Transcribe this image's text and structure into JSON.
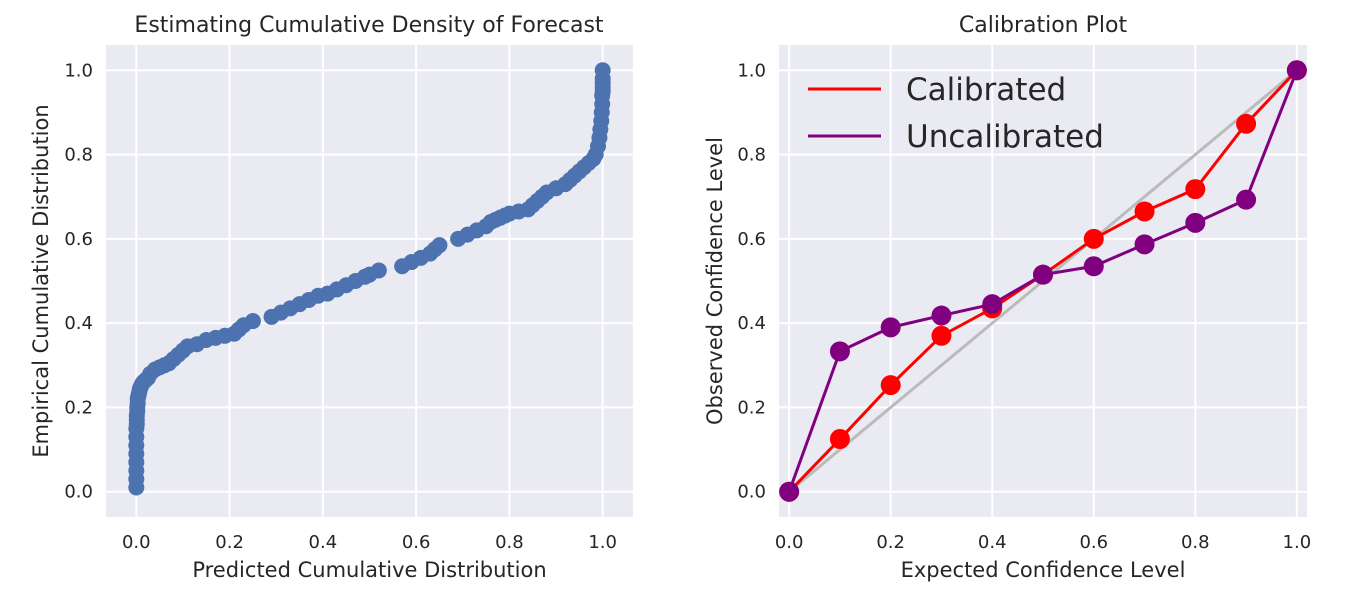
{
  "chart_data": [
    {
      "type": "scatter",
      "title": "Estimating Cumulative Density of Forecast",
      "xlabel": "Predicted Cumulative Distribution",
      "ylabel": "Empirical Cumulative Distribution",
      "xlim": [
        -0.065,
        1.065
      ],
      "ylim": [
        -0.06,
        1.06
      ],
      "xticks": [
        "0.0",
        "0.2",
        "0.4",
        "0.6",
        "0.8",
        "1.0"
      ],
      "yticks": [
        "0.0",
        "0.2",
        "0.4",
        "0.6",
        "0.8",
        "1.0"
      ],
      "grid": true,
      "marker_color": "#4c72b0",
      "series": [
        {
          "x": [
            0.0,
            0.0,
            0.0,
            0.0,
            0.0,
            0.0,
            0.0,
            0.0,
            0.001,
            0.001,
            0.001,
            0.002,
            0.002,
            0.003,
            0.003,
            0.004,
            0.005,
            0.006,
            0.007,
            0.008,
            0.01,
            0.012,
            0.015,
            0.02,
            0.025,
            0.03,
            0.04,
            0.05,
            0.06,
            0.07,
            0.08,
            0.09,
            0.1,
            0.11,
            0.13,
            0.15,
            0.17,
            0.19,
            0.21,
            0.22,
            0.23,
            0.25,
            0.29,
            0.31,
            0.33,
            0.35,
            0.37,
            0.39,
            0.41,
            0.43,
            0.45,
            0.47,
            0.49,
            0.5,
            0.52,
            0.57,
            0.59,
            0.61,
            0.63,
            0.64,
            0.65,
            0.69,
            0.71,
            0.73,
            0.75,
            0.76,
            0.77,
            0.78,
            0.79,
            0.8,
            0.82,
            0.84,
            0.85,
            0.86,
            0.87,
            0.88,
            0.9,
            0.92,
            0.93,
            0.94,
            0.95,
            0.96,
            0.97,
            0.98,
            0.985,
            0.99,
            0.993,
            0.995,
            0.997,
            0.998,
            0.999,
            0.999,
            1.0,
            1.0,
            1.0,
            1.0,
            1.0
          ],
          "y": [
            0.01,
            0.03,
            0.05,
            0.07,
            0.09,
            0.11,
            0.13,
            0.15,
            0.16,
            0.17,
            0.18,
            0.19,
            0.2,
            0.21,
            0.22,
            0.225,
            0.23,
            0.235,
            0.24,
            0.245,
            0.25,
            0.255,
            0.26,
            0.265,
            0.27,
            0.28,
            0.29,
            0.295,
            0.3,
            0.305,
            0.315,
            0.325,
            0.335,
            0.345,
            0.35,
            0.36,
            0.365,
            0.37,
            0.375,
            0.385,
            0.395,
            0.405,
            0.415,
            0.425,
            0.435,
            0.445,
            0.455,
            0.465,
            0.47,
            0.48,
            0.49,
            0.5,
            0.51,
            0.515,
            0.525,
            0.535,
            0.545,
            0.555,
            0.565,
            0.575,
            0.585,
            0.6,
            0.61,
            0.62,
            0.63,
            0.64,
            0.645,
            0.65,
            0.655,
            0.66,
            0.665,
            0.67,
            0.68,
            0.69,
            0.7,
            0.71,
            0.72,
            0.73,
            0.74,
            0.75,
            0.76,
            0.77,
            0.78,
            0.79,
            0.8,
            0.82,
            0.84,
            0.86,
            0.88,
            0.9,
            0.92,
            0.94,
            0.95,
            0.96,
            0.97,
            0.98,
            1.0
          ]
        }
      ]
    },
    {
      "type": "line",
      "title": "Calibration Plot",
      "xlabel": "Expected Confidence Level",
      "ylabel": "Observed Confidence Level",
      "xlim": [
        -0.02,
        1.02
      ],
      "ylim": [
        -0.06,
        1.06
      ],
      "xticks": [
        "0.0",
        "0.2",
        "0.4",
        "0.6",
        "0.8",
        "1.0"
      ],
      "yticks": [
        "0.0",
        "0.2",
        "0.4",
        "0.6",
        "0.8",
        "1.0"
      ],
      "grid": true,
      "legend_position": "top-left",
      "reference_line": {
        "x": [
          0,
          1
        ],
        "y": [
          0,
          1
        ],
        "color": "#bbbbbb"
      },
      "x": [
        0.0,
        0.1,
        0.2,
        0.3,
        0.4,
        0.5,
        0.6,
        0.7,
        0.8,
        0.9,
        1.0
      ],
      "series": [
        {
          "name": "Calibrated",
          "color": "#ff0000",
          "values": [
            0.0,
            0.125,
            0.253,
            0.37,
            0.435,
            0.515,
            0.6,
            0.665,
            0.718,
            0.873,
            1.0
          ]
        },
        {
          "name": "Uncalibrated",
          "color": "#800080",
          "values": [
            0.0,
            0.333,
            0.39,
            0.418,
            0.445,
            0.515,
            0.535,
            0.587,
            0.638,
            0.693,
            1.0
          ]
        }
      ]
    }
  ]
}
